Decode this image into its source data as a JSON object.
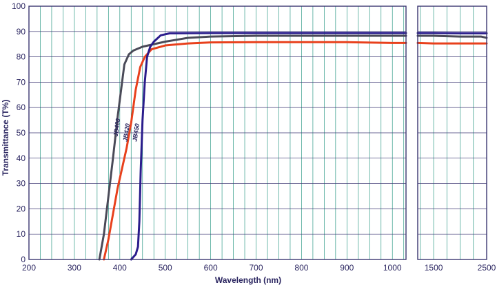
{
  "chart_data": {
    "type": "line",
    "xlabel": "Wavelength (nm)",
    "ylabel": "Transmittance (T%)",
    "ylim": [
      0,
      100
    ],
    "yticks": [
      0,
      10,
      20,
      30,
      40,
      50,
      60,
      70,
      80,
      90,
      100
    ],
    "xaxis_broken": true,
    "xlim_main": [
      200,
      1030
    ],
    "xticks_main": [
      200,
      300,
      400,
      500,
      600,
      700,
      800,
      900,
      1000
    ],
    "xlim_right": [
      1200,
      2500
    ],
    "xticks_right": [
      1500,
      2500
    ],
    "grid": true,
    "legend": "none",
    "colors": {
      "grid_vertical": "#2e9a86",
      "grid_horizontal": "#3a3570",
      "frame": "#3a3570",
      "text": "#2a2560"
    },
    "series": [
      {
        "name": "JB400",
        "color": "#4a4a58",
        "x": [
          355,
          365,
          375,
          385,
          395,
          400,
          410,
          420,
          430,
          450,
          500,
          550,
          600,
          700,
          800,
          900,
          1000,
          1030,
          1200,
          1500,
          2000,
          2400,
          2500
        ],
        "y": [
          0,
          10,
          25,
          40,
          56,
          63,
          77,
          81,
          82.5,
          84,
          86,
          87.5,
          88,
          88.3,
          88.3,
          88.3,
          88.3,
          88.3,
          88.3,
          88.3,
          88,
          88,
          87.5
        ]
      },
      {
        "name": "JB420",
        "color": "#e8401c",
        "x": [
          365,
          375,
          385,
          395,
          405,
          415,
          425,
          435,
          445,
          455,
          470,
          500,
          550,
          600,
          700,
          800,
          900,
          1000,
          1030,
          1200,
          1500,
          2000,
          2500
        ],
        "y": [
          0,
          8,
          18,
          28,
          36,
          44,
          54,
          67,
          76,
          80,
          83,
          84.5,
          85.3,
          85.7,
          85.8,
          85.8,
          85.8,
          85.5,
          85.5,
          85.5,
          85.3,
          85.3,
          85.3
        ]
      },
      {
        "name": "JB450",
        "color": "#2a1d8c",
        "x": [
          425,
          435,
          440,
          443,
          446,
          450,
          455,
          460,
          467,
          475,
          490,
          510,
          600,
          700,
          800,
          900,
          1000,
          1030,
          1200,
          1500,
          2000,
          2500
        ],
        "y": [
          0,
          2,
          5,
          15,
          35,
          55,
          70,
          80,
          84,
          86,
          88.5,
          89.3,
          89.4,
          89.4,
          89.4,
          89.4,
          89.4,
          89.4,
          89.4,
          89.4,
          89.3,
          89.3
        ]
      }
    ]
  }
}
